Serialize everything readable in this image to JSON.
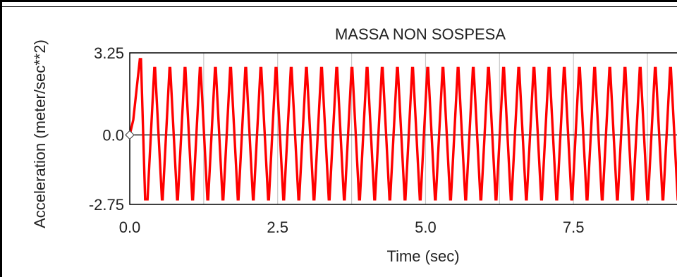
{
  "chart_data": {
    "type": "line",
    "title": "MASSA NON SOSPESA",
    "xlabel": "Time (sec)",
    "ylabel": "Acceleration (meter/sec**2)",
    "xlim": [
      0.0,
      9.25
    ],
    "ylim": [
      -2.75,
      3.25
    ],
    "x_ticks": [
      0.0,
      2.5,
      5.0,
      7.5
    ],
    "x_tick_labels": [
      "0.0",
      "2.5",
      "5.0",
      "7.5"
    ],
    "y_ticks": [
      3.25,
      0.0,
      -2.75
    ],
    "y_tick_labels": [
      "3.25",
      "0.0",
      "-2.75"
    ],
    "x_gridlines": [
      1.25,
      2.5,
      3.75,
      5.0,
      6.25,
      7.5,
      8.75
    ],
    "grid": true,
    "series": [
      {
        "color": "#ff0000",
        "frequency_hz": 3.9,
        "amplitude_positive": 2.65,
        "amplitude_negative": -2.55,
        "first_peak": 3.0,
        "start_value": 0.0
      }
    ],
    "colors": {
      "signal": "#ff0000",
      "grid": "#c8c8c8",
      "axis": "#000000"
    }
  }
}
